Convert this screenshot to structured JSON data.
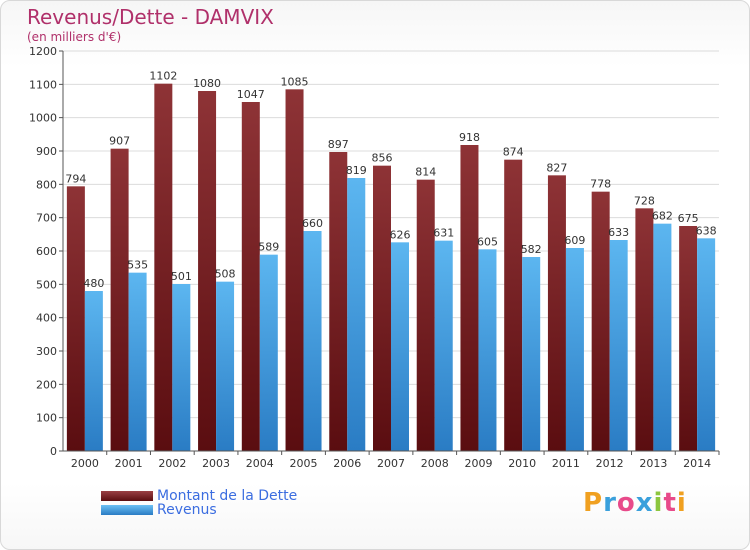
{
  "chart_data": {
    "type": "bar",
    "title": "Revenus/Dette - DAMVIX",
    "subtitle": "(en milliers d'€)",
    "categories": [
      "2000",
      "2001",
      "2002",
      "2003",
      "2004",
      "2005",
      "2006",
      "2007",
      "2008",
      "2009",
      "2010",
      "2011",
      "2012",
      "2013",
      "2014"
    ],
    "series": [
      {
        "name": "Montant de la Dette",
        "color": "#7a2226",
        "values": [
          794,
          907,
          1102,
          1080,
          1047,
          1085,
          897,
          856,
          814,
          918,
          874,
          827,
          778,
          728,
          675
        ]
      },
      {
        "name": "Revenus",
        "color": "#4aa3e6",
        "values": [
          480,
          535,
          501,
          508,
          589,
          660,
          819,
          626,
          631,
          605,
          582,
          609,
          633,
          682,
          638
        ]
      }
    ],
    "ylim": [
      0,
      1200
    ],
    "yticks": [
      0,
      100,
      200,
      300,
      400,
      500,
      600,
      700,
      800,
      900,
      1000,
      1100,
      1200
    ],
    "grid": true,
    "legend_position": "bottom-left"
  },
  "logo": {
    "letters": [
      "P",
      "r",
      "o",
      "x",
      "i",
      "t",
      "i"
    ],
    "colors": [
      "#f0a020",
      "#3aa0dc",
      "#e84a8a",
      "#3aa0dc",
      "#8cc63f",
      "#e84a8a",
      "#f0a020"
    ]
  }
}
